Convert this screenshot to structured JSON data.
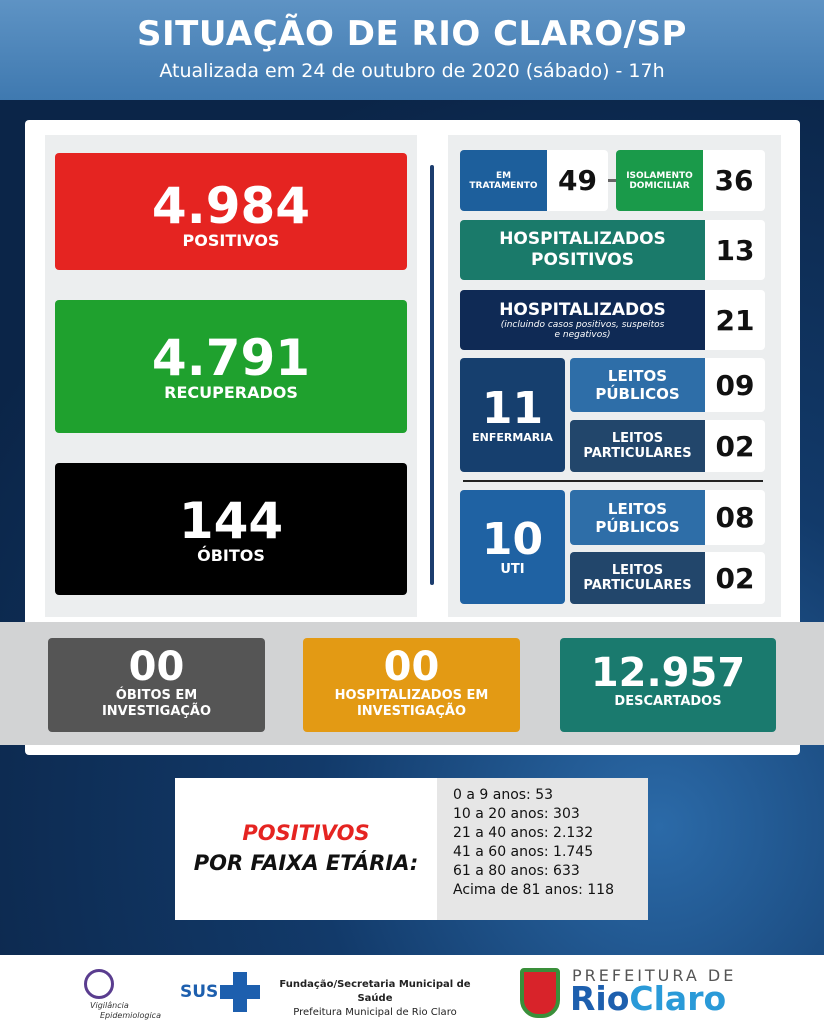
{
  "header": {
    "title": "SITUAÇÃO DE RIO CLARO/SP",
    "subtitle": "Atualizada em 24 de outubro de 2020 (sábado) - 17h"
  },
  "main": {
    "positivos": {
      "value": "4.984",
      "label": "POSITIVOS",
      "color": "#e52421"
    },
    "recuperados": {
      "value": "4.791",
      "label": "RECUPERADOS",
      "color": "#1fa12e"
    },
    "obitos": {
      "value": "144",
      "label": "ÓBITOS",
      "color": "#000000"
    }
  },
  "status": {
    "em_tratamento": {
      "label1": "EM",
      "label2": "TRATAMENTO",
      "value": "49"
    },
    "isolamento": {
      "label1": "ISOLAMENTO",
      "label2": "DOMICILIAR",
      "value": "36"
    },
    "hosp_positivos": {
      "label1": "HOSPITALIZADOS",
      "label2": "POSITIVOS",
      "value": "13"
    },
    "hospitalizados": {
      "label": "HOSPITALIZADOS",
      "note1": "(incluindo casos positivos, suspeitos",
      "note2": "e negativos)",
      "value": "21"
    },
    "enfermaria": {
      "value": "11",
      "label": "ENFERMARIA",
      "publicos": {
        "l1": "LEITOS",
        "l2": "PÚBLICOS",
        "value": "09"
      },
      "particulares": {
        "l1": "LEITOS",
        "l2": "PARTICULARES",
        "value": "02"
      }
    },
    "uti": {
      "value": "10",
      "label": "UTI",
      "publicos": {
        "l1": "LEITOS",
        "l2": "PÚBLICOS",
        "value": "08"
      },
      "particulares": {
        "l1": "LEITOS",
        "l2": "PARTICULARES",
        "value": "02"
      }
    }
  },
  "investigation": {
    "obitos": {
      "value": "00",
      "l1": "ÓBITOS EM",
      "l2": "INVESTIGAÇÃO"
    },
    "hosp": {
      "value": "00",
      "l1": "HOSPITALIZADOS EM",
      "l2": "INVESTIGAÇÃO"
    },
    "descartados": {
      "value": "12.957",
      "l1": "DESCARTADOS"
    }
  },
  "age": {
    "title1": "POSITIVOS",
    "title2": "POR FAIXA ETÁRIA:",
    "items": [
      "0 a 9 anos: 53",
      "10 a 20 anos: 303",
      "21 a 40 anos: 2.132",
      "41 a 60 anos: 1.745",
      "61 a 80 anos: 633",
      "Acima de 81 anos: 118"
    ]
  },
  "footer": {
    "vig1": "Vigilância",
    "vig2": "Epidemiologica",
    "sus": "SUS",
    "fund1": "Fundação/Secretaria Municipal de Saúde",
    "fund2": "Prefeitura Municipal de Rio Claro",
    "pref1": "PREFEITURA DE",
    "pref_rio": "Rio",
    "pref_claro": "Claro"
  }
}
